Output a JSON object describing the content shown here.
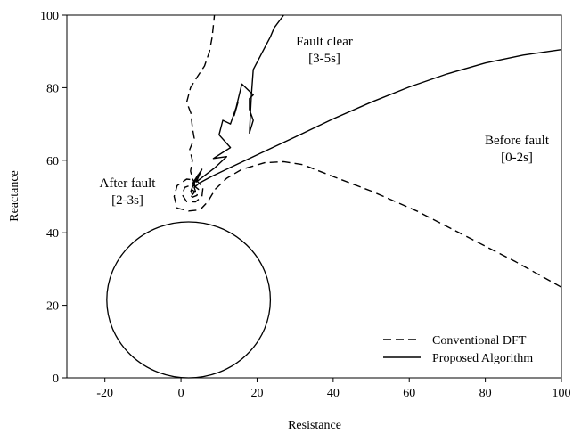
{
  "chart_data": {
    "type": "line",
    "xlabel": "Resistance",
    "ylabel": "Reactance",
    "xlim": [
      -30,
      100
    ],
    "ylim": [
      0,
      100
    ],
    "xticks": [
      "-20",
      "0",
      "20",
      "40",
      "60",
      "80",
      "100"
    ],
    "yticks": [
      "0",
      "20",
      "40",
      "60",
      "80",
      "100"
    ],
    "xtick_values": [
      -20,
      0,
      20,
      40,
      60,
      80,
      100
    ],
    "ytick_values": [
      0,
      20,
      40,
      60,
      80,
      100
    ],
    "grid": false,
    "legend_position": "bottom-right",
    "annotations": [
      {
        "line1": "Fault clear",
        "line2": "[3-5s]",
        "x": 39,
        "y": 90
      },
      {
        "line1": "Before fault",
        "line2": "[0-2s]",
        "x": 82,
        "y": 62
      },
      {
        "line1": "After fault",
        "line2": "[2-3s]",
        "x": -16,
        "y": 51
      }
    ],
    "relay_circle": {
      "center": [
        2,
        21.5
      ],
      "radius_r": 21.5,
      "radius_x": 21.5
    },
    "series": [
      {
        "name": "Conventional DFT",
        "style": "dashed",
        "points": [
          [
            100,
            25
          ],
          [
            88,
            32
          ],
          [
            75,
            39
          ],
          [
            62,
            46
          ],
          [
            50,
            51.5
          ],
          [
            40,
            55.5
          ],
          [
            32,
            58.8
          ],
          [
            27,
            59.6
          ],
          [
            22,
            59.3
          ],
          [
            16,
            57.5
          ],
          [
            12,
            55
          ],
          [
            9,
            52
          ],
          [
            7,
            48.5
          ],
          [
            5,
            46.3
          ],
          [
            2,
            46
          ],
          [
            -1,
            46.8
          ],
          [
            -1.8,
            50
          ],
          [
            -1,
            53
          ],
          [
            1.5,
            54.8
          ],
          [
            4,
            54.5
          ],
          [
            5.8,
            52.5
          ],
          [
            5.5,
            50
          ],
          [
            3.8,
            48.5
          ],
          [
            1.5,
            48.6
          ],
          [
            0.3,
            50.5
          ],
          [
            1,
            52.5
          ],
          [
            3,
            53.3
          ],
          [
            4.6,
            52
          ],
          [
            4.2,
            50.3
          ],
          [
            3,
            49.8
          ],
          [
            2.2,
            50.8
          ],
          [
            3,
            51.8
          ],
          [
            3.8,
            51.2
          ],
          [
            3.6,
            53.5
          ],
          [
            3,
            55
          ],
          [
            2.5,
            57
          ],
          [
            3,
            60
          ],
          [
            2.3,
            63
          ],
          [
            3.5,
            66
          ],
          [
            3,
            69
          ],
          [
            2.6,
            73
          ],
          [
            1.5,
            76
          ],
          [
            2.5,
            80
          ],
          [
            4.3,
            83
          ],
          [
            6.2,
            86
          ],
          [
            7.5,
            90
          ],
          [
            8.2,
            94
          ],
          [
            8.6,
            98
          ],
          [
            8.8,
            100
          ]
        ]
      },
      {
        "name": "Proposed Algorithm",
        "style": "solid",
        "points": [
          [
            100,
            90.5
          ],
          [
            90,
            89
          ],
          [
            80,
            86.8
          ],
          [
            70,
            83.8
          ],
          [
            60,
            80.2
          ],
          [
            50,
            76
          ],
          [
            40,
            71.4
          ],
          [
            30,
            66.4
          ],
          [
            20,
            61.5
          ],
          [
            13,
            58
          ],
          [
            8,
            55.5
          ],
          [
            5,
            53.8
          ],
          [
            3.5,
            52.5
          ],
          [
            3.8,
            51.5
          ],
          [
            3,
            50.5
          ],
          [
            2.6,
            51.5
          ],
          [
            3.2,
            53
          ],
          [
            4.5,
            56
          ],
          [
            3,
            53.5
          ],
          [
            5.5,
            57.5
          ],
          [
            4,
            54
          ],
          [
            9,
            58
          ],
          [
            12,
            61
          ],
          [
            8.5,
            60.5
          ],
          [
            13,
            63.5
          ],
          [
            10,
            67
          ],
          [
            11,
            71
          ],
          [
            13,
            70
          ],
          [
            15,
            76
          ],
          [
            14,
            72.3
          ],
          [
            16,
            81
          ],
          [
            19,
            78
          ],
          [
            18,
            77
          ],
          [
            18,
            74
          ],
          [
            19,
            71
          ],
          [
            18,
            67.5
          ],
          [
            18.5,
            78
          ],
          [
            19,
            85
          ],
          [
            21,
            89
          ],
          [
            22.5,
            92
          ],
          [
            23.5,
            94
          ],
          [
            24.5,
            96.5
          ],
          [
            27,
            100
          ]
        ]
      }
    ]
  }
}
